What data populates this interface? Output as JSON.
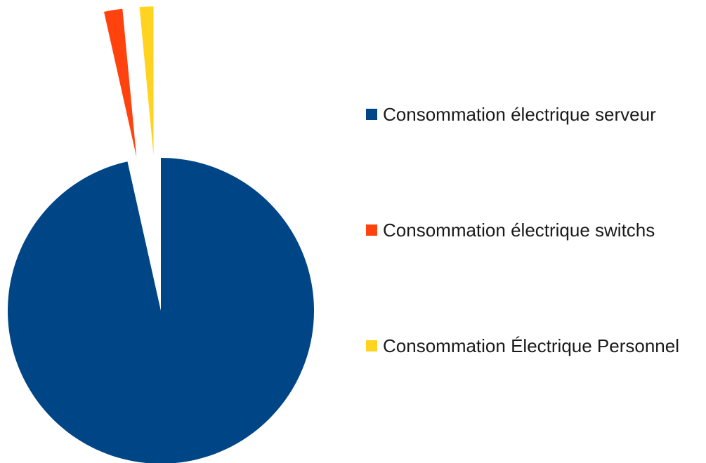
{
  "chart_data": {
    "type": "pie",
    "title": "",
    "exploded": true,
    "legend_position": "right",
    "series": [
      {
        "name": "Consommation électrique serveur",
        "value": 96.5,
        "color": "#004586"
      },
      {
        "name": "Consommation électrique switchs",
        "value": 2.0,
        "color": "#ff420e"
      },
      {
        "name": "Consommation Électrique Personnel",
        "value": 1.5,
        "color": "#ffd320"
      }
    ]
  }
}
